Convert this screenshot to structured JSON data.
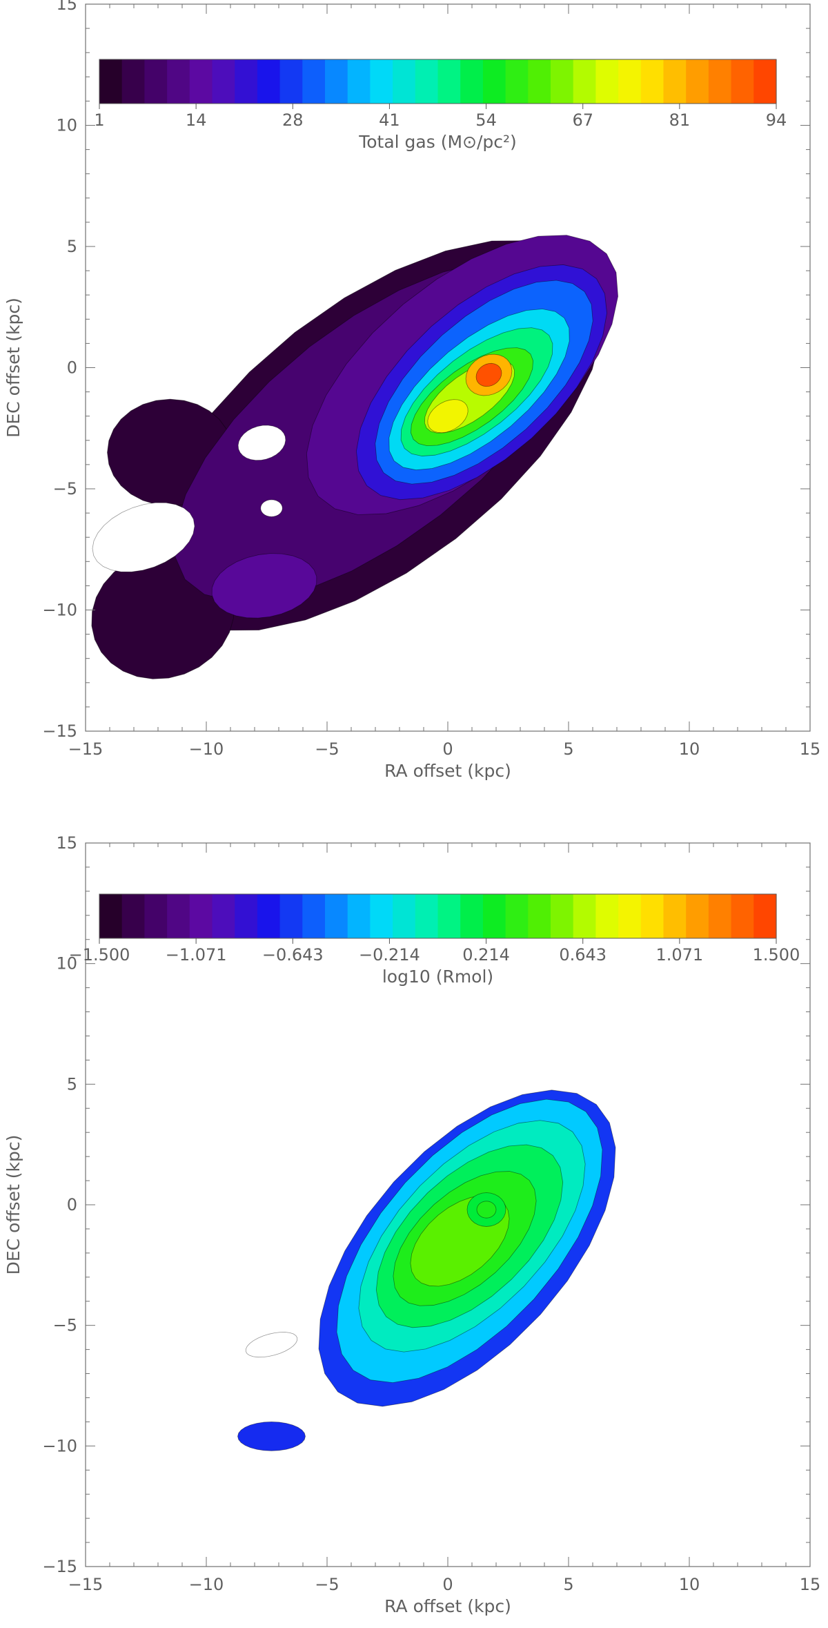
{
  "chart_data": [
    {
      "type": "heatmap",
      "subtype": "filled-contour map",
      "xlabel": "RA offset (kpc)",
      "ylabel": "DEC offset (kpc)",
      "xlim": [
        -15,
        15
      ],
      "ylim": [
        -15,
        15
      ],
      "x_ticks": [
        "−15",
        "−10",
        "−5",
        "0",
        "5",
        "10",
        "15"
      ],
      "y_ticks": [
        "−15",
        "−10",
        "−5",
        "0",
        "5",
        "10",
        "15"
      ],
      "colorbar": {
        "label": "Total gas (M⊙/pc²)",
        "tick_labels": [
          "1",
          "14",
          "28",
          "41",
          "54",
          "67",
          "81",
          "94"
        ],
        "range": [
          1,
          94
        ],
        "colormap": "rainbow (black-purple-blue-cyan-green-yellow-orange-red)",
        "n_levels": 30,
        "placement": "inside top of plot"
      },
      "peaks": [
        {
          "x": 1.7,
          "y": -0.3,
          "value": 94
        },
        {
          "x": -0.1,
          "y": -2.1,
          "value": 75
        }
      ]
    },
    {
      "type": "heatmap",
      "subtype": "filled-contour map",
      "xlabel": "RA offset (kpc)",
      "ylabel": "DEC offset (kpc)",
      "xlim": [
        -15,
        15
      ],
      "ylim": [
        -15,
        15
      ],
      "x_ticks": [
        "−15",
        "−10",
        "−5",
        "0",
        "5",
        "10",
        "15"
      ],
      "y_ticks": [
        "−15",
        "−10",
        "−5",
        "0",
        "5",
        "10",
        "15"
      ],
      "colorbar": {
        "label": "log10 (Rmol)",
        "tick_labels": [
          "−1.500",
          "−1.071",
          "−0.643",
          "−0.214",
          "0.214",
          "0.643",
          "1.071",
          "1.500"
        ],
        "range": [
          -1.5,
          1.5
        ],
        "colormap": "rainbow (black-purple-blue-cyan-green-yellow-orange-red)",
        "n_levels": 30,
        "placement": "inside top of plot"
      },
      "peaks": [
        {
          "x": 1.5,
          "y": -0.2,
          "value": 0.8
        }
      ]
    }
  ]
}
